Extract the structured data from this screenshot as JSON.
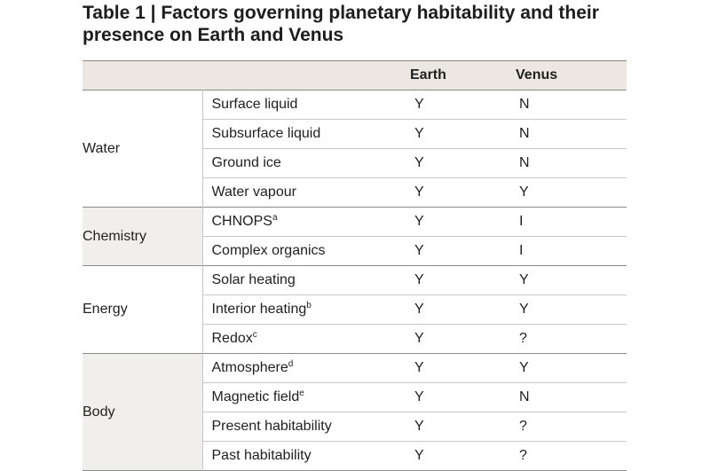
{
  "title": "Table 1 | Factors governing planetary habitability and their presence on Earth and Venus",
  "columns": {
    "earth": "Earth",
    "venus": "Venus"
  },
  "groups": [
    {
      "name": "Water",
      "rows": [
        {
          "factor": "Surface liquid",
          "sup": "",
          "earth": "Y",
          "venus": "N"
        },
        {
          "factor": "Subsurface liquid",
          "sup": "",
          "earth": "Y",
          "venus": "N"
        },
        {
          "factor": "Ground ice",
          "sup": "",
          "earth": "Y",
          "venus": "N"
        },
        {
          "factor": "Water vapour",
          "sup": "",
          "earth": "Y",
          "venus": "Y"
        }
      ]
    },
    {
      "name": "Chemistry",
      "rows": [
        {
          "factor": "CHNOPS",
          "sup": "a",
          "earth": "Y",
          "venus": "I"
        },
        {
          "factor": "Complex organics",
          "sup": "",
          "earth": "Y",
          "venus": "I"
        }
      ]
    },
    {
      "name": "Energy",
      "rows": [
        {
          "factor": "Solar heating",
          "sup": "",
          "earth": "Y",
          "venus": "Y"
        },
        {
          "factor": "Interior heating",
          "sup": "b",
          "earth": "Y",
          "venus": "Y"
        },
        {
          "factor": "Redox",
          "sup": "c",
          "earth": "Y",
          "venus": "?"
        }
      ]
    },
    {
      "name": "Body",
      "rows": [
        {
          "factor": "Atmosphere",
          "sup": "d",
          "earth": "Y",
          "venus": "Y"
        },
        {
          "factor": "Magnetic field",
          "sup": "e",
          "earth": "Y",
          "venus": "N"
        },
        {
          "factor": "Present habitability",
          "sup": "",
          "earth": "Y",
          "venus": "?"
        },
        {
          "factor": "Past habitability",
          "sup": "",
          "earth": "Y",
          "venus": "?"
        }
      ]
    }
  ]
}
